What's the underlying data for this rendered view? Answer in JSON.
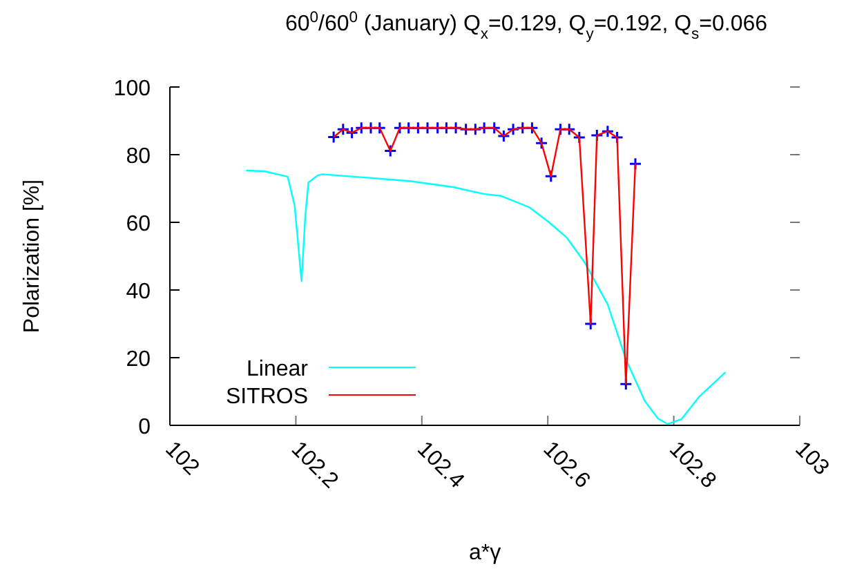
{
  "chart_data": {
    "type": "line",
    "title": "60$^{0}$/60$^{0}$ (January) Q$_{x}$=0.129, Q$_{y}$=0.192, Q$_{s}$=0.066",
    "xlabel": "a*γ",
    "ylabel": "Polarization [%]",
    "xlim": [
      102,
      103
    ],
    "xticks": [
      102,
      102.2,
      102.4,
      102.6,
      102.8,
      103
    ],
    "ylim": [
      0,
      100
    ],
    "yticks": [
      0,
      20,
      40,
      60,
      80,
      100
    ],
    "grid": false,
    "legend": "bottom left",
    "series": [
      {
        "name": "Linear",
        "color": "#00ffff",
        "marker": "none",
        "x": [
          102.121,
          102.15,
          102.187,
          102.198,
          102.209,
          102.215,
          102.22,
          102.235,
          102.242,
          102.3,
          102.381,
          102.45,
          102.498,
          102.526,
          102.571,
          102.6,
          102.63,
          102.659,
          102.695,
          102.724,
          102.754,
          102.775,
          102.79,
          102.812,
          102.841,
          102.882
        ],
        "values": [
          75.3,
          75.1,
          73.5,
          65,
          42.6,
          62,
          71.8,
          73.9,
          74.2,
          73.4,
          72.2,
          70.4,
          68.4,
          67.8,
          64.4,
          60.3,
          55.5,
          48,
          35.8,
          19.5,
          7.2,
          2,
          0.4,
          1.8,
          8.6,
          15.7
        ]
      },
      {
        "name": "SITROS",
        "color": "#ff0000",
        "marker": "cross",
        "colors": [
          "#0000ff",
          "#0000ff",
          "#0000ff",
          "#0000ff",
          "#0000ff",
          "#0000ff",
          "#0000ff",
          "#0000ff",
          "#0000ff",
          "#0000ff",
          "#0000ff",
          "#0000ff",
          "#0000ff",
          "#0000ff",
          "#0000ff",
          "#0000ff",
          "#0000ff",
          "#0000ff",
          "#0000ff",
          "#0000ff",
          "#0000ff",
          "#0000ff",
          "#0000ff",
          "#0000ff",
          "#0000ff",
          "#0000ff",
          "#0000ff",
          "#0000ff",
          "#0000ff",
          "#0000ff",
          "#0000ff",
          "#0000ff",
          "#0000ff"
        ],
        "x": [
          102.26,
          102.275,
          102.289,
          102.304,
          102.319,
          102.333,
          102.35,
          102.365,
          102.379,
          102.394,
          102.409,
          102.425,
          102.439,
          102.454,
          102.47,
          102.485,
          102.499,
          102.515,
          102.53,
          102.545,
          102.56,
          102.575,
          102.59,
          102.605,
          102.62,
          102.634,
          102.65,
          102.668,
          102.678,
          102.695,
          102.71,
          102.724,
          102.739
        ],
        "values": [
          85.2,
          87.5,
          86.5,
          87.9,
          87.9,
          87.9,
          81.1,
          87.9,
          87.9,
          87.9,
          87.9,
          87.9,
          87.9,
          87.9,
          87.5,
          87.5,
          87.9,
          87.9,
          85.5,
          87.5,
          87.9,
          87.9,
          83.4,
          73.6,
          87.5,
          87.5,
          85.1,
          30,
          85.7,
          86.9,
          85.1,
          12.2,
          77.3
        ]
      }
    ]
  }
}
